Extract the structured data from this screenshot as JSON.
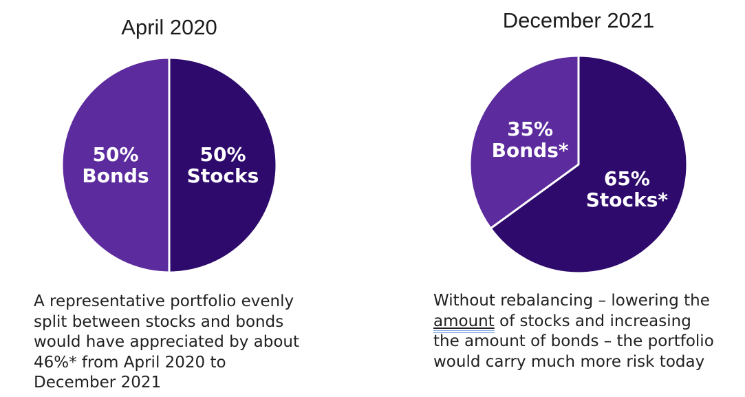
{
  "page": {
    "background_color": "#ffffff",
    "text_color": "#212121",
    "accent_light_purple": "#5c2b9e",
    "accent_dark_purple": "#2d0a6b",
    "grammar_underline_color": "#7ca3e4"
  },
  "chart_data": [
    {
      "type": "pie",
      "title": "April 2020",
      "categories": [
        "Stocks",
        "Bonds"
      ],
      "values": [
        50,
        50
      ],
      "slice_labels": [
        "50%\nStocks",
        "50%\nBonds"
      ],
      "colors": [
        "#2d0a6b",
        "#5c2b9e"
      ],
      "start_angle_deg": 0,
      "direction": "clockwise",
      "separator_color": "#ffffff",
      "label_color": "#ffffff",
      "legend_position": "none",
      "caption": "A representative portfolio evenly split between stocks and bonds would have appreciated by about 46%* from April 2020 to December 2021",
      "caption_parts": [
        {
          "text": "A representative portfolio evenly\nsplit between stocks and bonds\nwould have appreciated by about\n46%* from April 2020 to\nDecember 2021"
        }
      ]
    },
    {
      "type": "pie",
      "title": "December 2021",
      "categories": [
        "Stocks",
        "Bonds"
      ],
      "values": [
        65,
        35
      ],
      "slice_labels": [
        "65%\nStocks*",
        "35%\nBonds*"
      ],
      "colors": [
        "#2d0a6b",
        "#5c2b9e"
      ],
      "start_angle_deg": 0,
      "direction": "clockwise",
      "separator_color": "#ffffff",
      "label_color": "#ffffff",
      "legend_position": "none",
      "caption": "Without rebalancing – lowering the amount of stocks and increasing the amount of bonds – the portfolio would carry much more risk today",
      "caption_parts": [
        {
          "text": "Without rebalancing – lowering the\n"
        },
        {
          "text": "amount",
          "style": "grammar"
        },
        {
          "text": " of stocks and increasing\nthe amount of bonds – the portfolio\nwould carry much more risk today"
        }
      ]
    }
  ]
}
